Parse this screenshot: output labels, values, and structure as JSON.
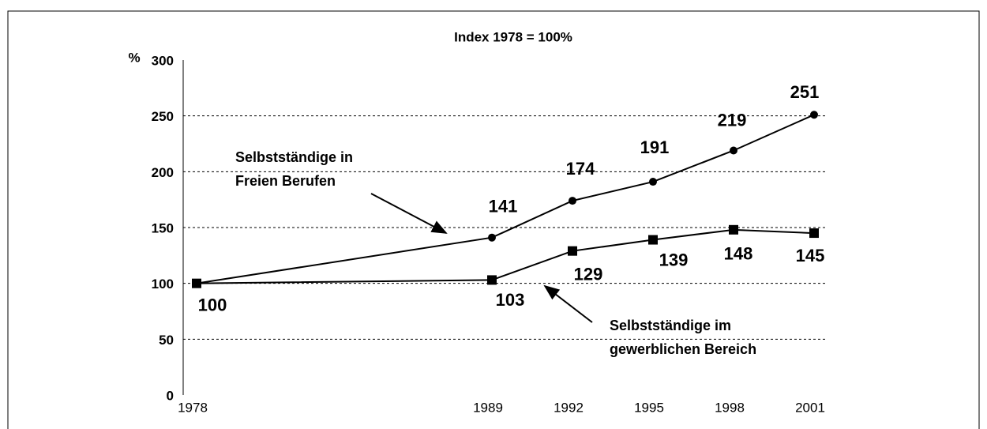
{
  "chart_data": {
    "type": "line",
    "title": "Index 1978 = 100%",
    "ylabel": "%",
    "x": [
      1978,
      1989,
      1992,
      1995,
      1998,
      2001
    ],
    "series": [
      {
        "name": "Selbstständige in Freien Berufen",
        "color": "#000000",
        "marker": "circle",
        "values": [
          100,
          141,
          174,
          191,
          219,
          251
        ]
      },
      {
        "name": "Selbstständige im gewerblichen Bereich",
        "color": "#000000",
        "marker": "square",
        "values": [
          100,
          103,
          129,
          139,
          148,
          145
        ]
      }
    ],
    "annotations": [
      [
        "Selbstständige in",
        "Freien Berufen"
      ],
      [
        "Selbstständige im",
        "gewerblichen Bereich"
      ]
    ],
    "xlim": [
      1977.5,
      2001.5
    ],
    "xticks": [
      1978,
      1989,
      1992,
      1995,
      1998,
      2001
    ],
    "ylim": [
      0,
      300
    ],
    "yticks": [
      0,
      50,
      100,
      150,
      200,
      250,
      300
    ],
    "grid": true
  }
}
